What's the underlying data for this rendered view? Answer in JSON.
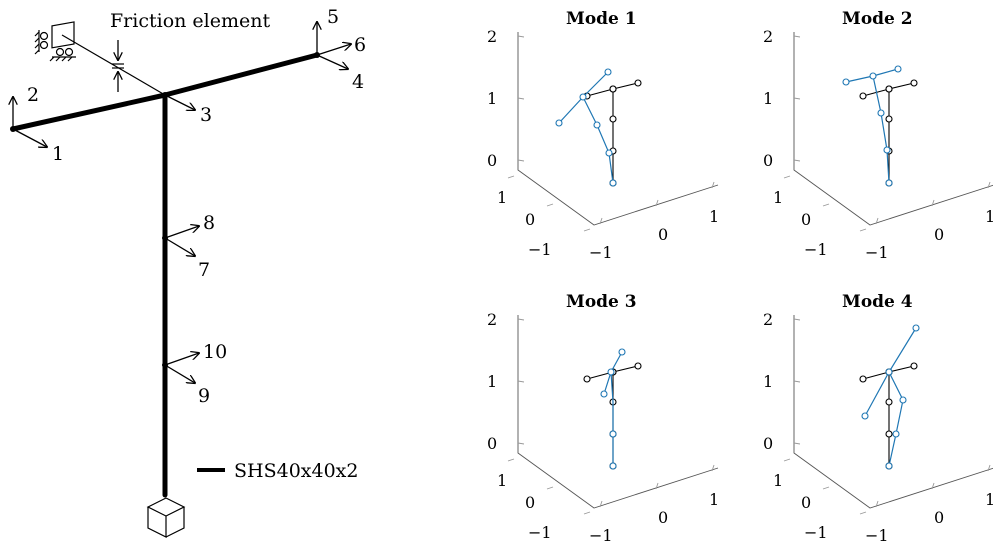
{
  "structure": {
    "friction_label": "Friction element",
    "section_label": "SHS40x40x2",
    "dof_labels": [
      "1",
      "2",
      "3",
      "4",
      "5",
      "6",
      "7",
      "8",
      "9",
      "10"
    ]
  },
  "modes": [
    {
      "title": "Mode 1"
    },
    {
      "title": "Mode 2"
    },
    {
      "title": "Mode 3"
    },
    {
      "title": "Mode 4"
    }
  ],
  "axis_ticks": {
    "z": [
      "0",
      "1",
      "2"
    ],
    "y": [
      "1",
      "0",
      "−1"
    ],
    "x": [
      "−1",
      "0",
      "1"
    ]
  },
  "colors": {
    "reference": "#000000",
    "mode_shape": "#1f77b4"
  }
}
